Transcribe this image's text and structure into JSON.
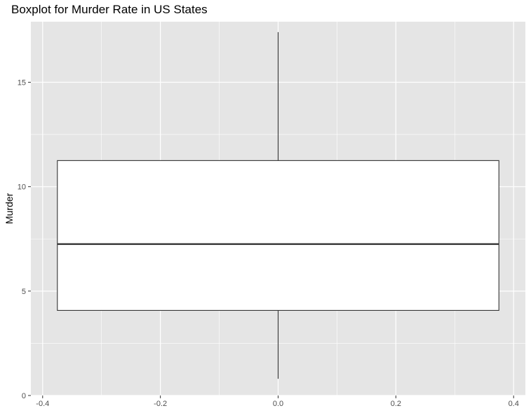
{
  "chart_data": {
    "type": "boxplot",
    "title": "Boxplot for Murder Rate in US States",
    "xlabel": "",
    "ylabel": "Murder",
    "xlim": [
      -0.42,
      0.42
    ],
    "ylim": [
      0,
      17.9
    ],
    "x_ticks": [
      -0.4,
      -0.2,
      0.0,
      0.2,
      0.4
    ],
    "x_tick_labels": [
      "-0.4",
      "-0.2",
      "0.0",
      "0.2",
      "0.4"
    ],
    "y_ticks": [
      0,
      5,
      10,
      15
    ],
    "y_tick_labels": [
      "0",
      "5",
      "10",
      "15"
    ],
    "x_minor_ticks": [
      -0.3,
      -0.1,
      0.1,
      0.3
    ],
    "y_minor_ticks": [
      2.5,
      7.5,
      12.5
    ],
    "box": {
      "x_center": 0.0,
      "x_left": -0.375,
      "x_right": 0.375,
      "whisker_low": 0.8,
      "q1": 4.075,
      "median": 7.25,
      "q3": 11.25,
      "whisker_high": 17.4
    },
    "grid": true,
    "colors": {
      "panel_background": "#e5e5e5",
      "grid_line": "#ffffff",
      "box_fill": "#ffffff",
      "box_stroke": "#333333",
      "tick_text": "#4d4d4d"
    }
  }
}
